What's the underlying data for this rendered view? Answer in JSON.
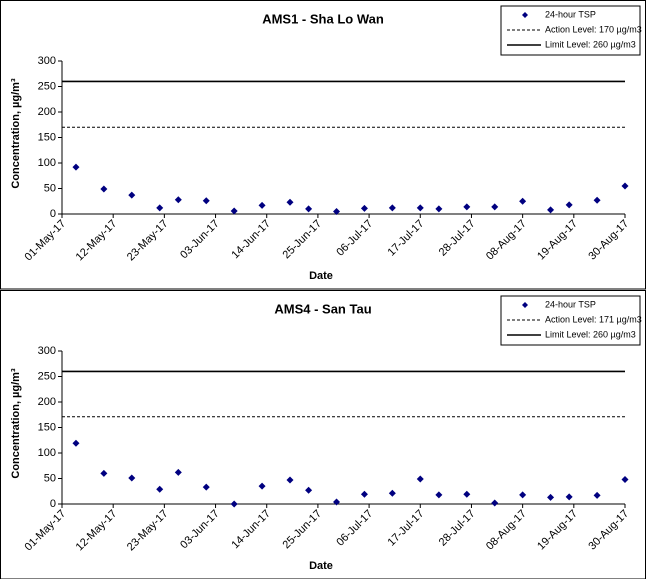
{
  "chart_data": [
    {
      "type": "scatter",
      "title": "AMS1 - Sha Lo Wan",
      "x_label": "Date",
      "y_label": "Concentration, µg/m³",
      "x": [
        "04-May-17",
        "10-May-17",
        "16-May-17",
        "22-May-17",
        "26-May-17",
        "01-Jun-17",
        "07-Jun-17",
        "13-Jun-17",
        "19-Jun-17",
        "23-Jun-17",
        "29-Jun-17",
        "05-Jul-17",
        "11-Jul-17",
        "17-Jul-17",
        "21-Jul-17",
        "27-Jul-17",
        "02-Aug-17",
        "08-Aug-17",
        "14-Aug-17",
        "18-Aug-17",
        "24-Aug-17",
        "30-Aug-17"
      ],
      "series": [
        {
          "name": "24-hour TSP",
          "color": "#000080",
          "values": [
            92,
            49,
            37,
            12,
            28,
            26,
            6,
            17,
            23,
            10,
            5,
            11,
            12,
            12,
            10,
            14,
            14,
            25,
            8,
            18,
            27,
            55
          ]
        }
      ],
      "reference_lines": [
        {
          "name": "Action Level: 170 µg/m3",
          "value": 170,
          "style": "dashed"
        },
        {
          "name": "Limit Level: 260 µg/m3",
          "value": 260,
          "style": "solid"
        }
      ],
      "xlim": [
        "01-May-17",
        "30-Aug-17"
      ],
      "xticks": [
        "01-May-17",
        "12-May-17",
        "23-May-17",
        "03-Jun-17",
        "14-Jun-17",
        "25-Jun-17",
        "06-Jul-17",
        "17-Jul-17",
        "28-Jul-17",
        "08-Aug-17",
        "19-Aug-17",
        "30-Aug-17"
      ],
      "ylim": [
        0,
        300
      ],
      "yticks": [
        0,
        50,
        100,
        150,
        200,
        250,
        300
      ],
      "grid": false,
      "legend_position": "top-right"
    },
    {
      "type": "scatter",
      "title": "AMS4 - San Tau",
      "x_label": "Date",
      "y_label": "Concentration, µg/m³",
      "x": [
        "04-May-17",
        "10-May-17",
        "16-May-17",
        "22-May-17",
        "26-May-17",
        "01-Jun-17",
        "07-Jun-17",
        "13-Jun-17",
        "19-Jun-17",
        "23-Jun-17",
        "29-Jun-17",
        "05-Jul-17",
        "11-Jul-17",
        "17-Jul-17",
        "21-Jul-17",
        "27-Jul-17",
        "02-Aug-17",
        "08-Aug-17",
        "14-Aug-17",
        "18-Aug-17",
        "24-Aug-17",
        "30-Aug-17"
      ],
      "series": [
        {
          "name": "24-hour TSP",
          "color": "#000080",
          "values": [
            119,
            60,
            51,
            29,
            62,
            33,
            0,
            35,
            47,
            27,
            4,
            19,
            21,
            49,
            18,
            19,
            2,
            18,
            13,
            14,
            17,
            48
          ]
        }
      ],
      "reference_lines": [
        {
          "name": "Action Level: 171 µg/m3",
          "value": 171,
          "style": "dashed"
        },
        {
          "name": "Limit Level: 260 µg/m3",
          "value": 260,
          "style": "solid"
        }
      ],
      "xlim": [
        "01-May-17",
        "30-Aug-17"
      ],
      "xticks": [
        "01-May-17",
        "12-May-17",
        "23-May-17",
        "03-Jun-17",
        "14-Jun-17",
        "25-Jun-17",
        "06-Jul-17",
        "17-Jul-17",
        "28-Jul-17",
        "08-Aug-17",
        "19-Aug-17",
        "30-Aug-17"
      ],
      "ylim": [
        0,
        300
      ],
      "yticks": [
        0,
        50,
        100,
        150,
        200,
        250,
        300
      ],
      "grid": false,
      "legend_position": "top-right"
    }
  ]
}
